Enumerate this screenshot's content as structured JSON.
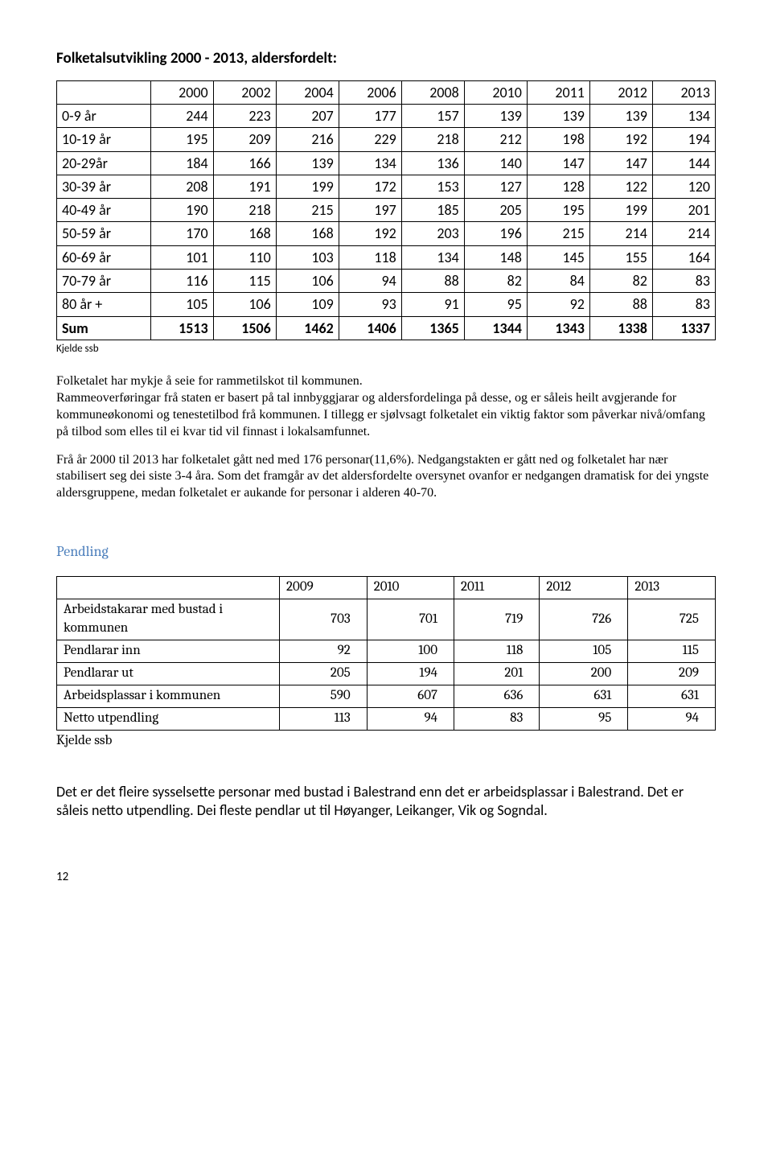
{
  "page_title": "Folketalsutvikling 2000 - 2013, aldersfordelt:",
  "pop_table": {
    "columns": [
      "2000",
      "2002",
      "2004",
      "2006",
      "2008",
      "2010",
      "2011",
      "2012",
      "2013"
    ],
    "rows": [
      {
        "label": "0-9 år",
        "vals": [
          "244",
          "223",
          "207",
          "177",
          "157",
          "139",
          "139",
          "139",
          "134"
        ]
      },
      {
        "label": "10-19 år",
        "vals": [
          "195",
          "209",
          "216",
          "229",
          "218",
          "212",
          "198",
          "192",
          "194"
        ]
      },
      {
        "label": "20-29år",
        "vals": [
          "184",
          "166",
          "139",
          "134",
          "136",
          "140",
          "147",
          "147",
          "144"
        ]
      },
      {
        "label": "30-39 år",
        "vals": [
          "208",
          "191",
          "199",
          "172",
          "153",
          "127",
          "128",
          "122",
          "120"
        ]
      },
      {
        "label": "40-49 år",
        "vals": [
          "190",
          "218",
          "215",
          "197",
          "185",
          "205",
          "195",
          "199",
          "201"
        ]
      },
      {
        "label": "50-59 år",
        "vals": [
          "170",
          "168",
          "168",
          "192",
          "203",
          "196",
          "215",
          "214",
          "214"
        ]
      },
      {
        "label": "60-69 år",
        "vals": [
          "101",
          "110",
          "103",
          "118",
          "134",
          "148",
          "145",
          "155",
          "164"
        ]
      },
      {
        "label": "70-79 år",
        "vals": [
          "116",
          "115",
          "106",
          "94",
          "88",
          "82",
          "84",
          "82",
          "83"
        ]
      },
      {
        "label": "80 år +",
        "vals": [
          "105",
          "106",
          "109",
          "93",
          "91",
          "95",
          "92",
          "88",
          "83"
        ]
      }
    ],
    "sum": {
      "label": "Sum",
      "vals": [
        "1513",
        "1506",
        "1462",
        "1406",
        "1365",
        "1344",
        "1343",
        "1338",
        "1337"
      ]
    },
    "source": "Kjelde ssb"
  },
  "paragraphs": {
    "p1": "Folketalet har mykje å seie for rammetilskot til kommunen.",
    "p2": "Rammeoverføringar frå staten er basert på tal innbyggjarar og aldersfordelinga på desse,  og  er såleis heilt avgjerande for kommuneøkonomi og tenestetilbod frå kommunen. I tillegg er sjølvsagt folketalet ein viktig faktor som påverkar nivå/omfang på tilbod som elles til ei kvar tid vil finnast i lokalsamfunnet.",
    "p3": "Frå år 2000 til 2013  har folketalet gått ned med 176 personar(11,6%). Nedgangstakten er gått ned og folketalet har nær stabilisert  seg dei siste 3-4 åra. Som  det framgår av det aldersfordelte oversynet ovanfor er nedgangen dramatisk for dei yngste aldersgruppene, medan folketalet er aukande for personar i alderen 40-70."
  },
  "pendling": {
    "heading": "Pendling",
    "columns": [
      "2009",
      "2010",
      "2011",
      "2012",
      "2013"
    ],
    "rows": [
      {
        "label": "Arbeidstakarar med bustad i kommunen",
        "vals": [
          "703",
          "701",
          "719",
          "726",
          "725"
        ]
      },
      {
        "label": "Pendlarar inn",
        "vals": [
          "92",
          "100",
          "118",
          "105",
          "115"
        ]
      },
      {
        "label": "Pendlarar ut",
        "vals": [
          "205",
          "194",
          "201",
          "200",
          "209"
        ]
      },
      {
        "label": "Arbeidsplassar i kommunen",
        "vals": [
          "590",
          "607",
          "636",
          "631",
          "631"
        ]
      },
      {
        "label": "Netto utpendling",
        "vals": [
          "113",
          "94",
          "83",
          "95",
          "94"
        ]
      }
    ],
    "source": "Kjelde ssb"
  },
  "bottom": "Det  er det fleire sysselsette personar med bustad i Balestrand enn det er arbeidsplassar i Balestrand. Det er såleis netto utpendling. Dei fleste pendlar ut til Høyanger, Leikanger, Vik og Sogndal.",
  "page_number": "12"
}
